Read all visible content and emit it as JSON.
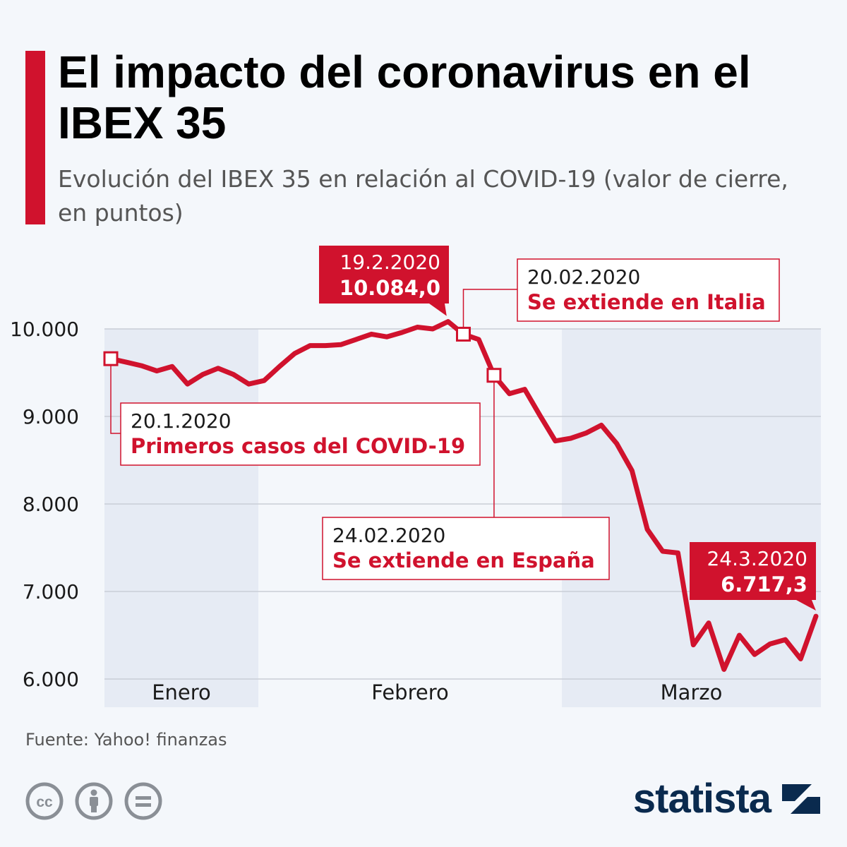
{
  "header": {
    "title": "El impacto del coronavirus en el IBEX 35",
    "subtitle": "Evolución del IBEX 35 en relación al COVID-19 (valor de cierre, en puntos)"
  },
  "footer": {
    "source": "Fuente: Yahoo! finanzas",
    "logo_text": "statista",
    "license_icons": [
      "creative-commons-icon",
      "attribution-icon",
      "no-derivatives-icon"
    ]
  },
  "colors": {
    "accent": "#d0122d",
    "background": "#f4f7fb",
    "month_band": "#e6ebf4",
    "grid": "#c9ced6",
    "logo": "#0a2a4e"
  },
  "chart_data": {
    "type": "line",
    "title": "El impacto del coronavirus en el IBEX 35",
    "ylabel": "",
    "xlabel": "",
    "ylim": [
      6000,
      10000
    ],
    "yticks": [
      6000,
      7000,
      8000,
      9000,
      10000
    ],
    "ytick_labels": [
      "6.000",
      "7.000",
      "8.000",
      "9.000",
      "10.000"
    ],
    "months": [
      "Enero",
      "Febrero",
      "Marzo"
    ],
    "shaded_months": [
      "Enero",
      "Marzo"
    ],
    "x": [
      "20.1",
      "21.1",
      "22.1",
      "23.1",
      "24.1",
      "27.1",
      "28.1",
      "29.1",
      "30.1",
      "31.1",
      "3.2",
      "4.2",
      "5.2",
      "6.2",
      "7.2",
      "10.2",
      "11.2",
      "12.2",
      "13.2",
      "14.2",
      "17.2",
      "18.2",
      "19.2",
      "20.2",
      "21.2",
      "24.2",
      "25.2",
      "26.2",
      "27.2",
      "28.2",
      "2.3",
      "3.3",
      "4.3",
      "5.3",
      "6.3",
      "9.3",
      "10.3",
      "11.3",
      "12.3",
      "13.3",
      "16.3",
      "17.3",
      "18.3",
      "19.3",
      "20.3",
      "23.3",
      "24.3"
    ],
    "series": [
      {
        "values": [
          9660,
          9620,
          9580,
          9520,
          9570,
          9370,
          9480,
          9550,
          9480,
          9370,
          9410,
          9570,
          9720,
          9810,
          9810,
          9820,
          9880,
          9940,
          9910,
          9960,
          10020,
          10000,
          10084,
          9940,
          9880,
          9470,
          9260,
          9310,
          9010,
          8720,
          8750,
          8810,
          8900,
          8690,
          8380,
          7710,
          7460,
          7440,
          6390,
          6640,
          6110,
          6500,
          6280,
          6400,
          6450,
          6230,
          6717.3
        ]
      }
    ],
    "callouts": [
      {
        "date": "19.2.2020",
        "value": "10.084,0"
      },
      {
        "date": "24.3.2020",
        "value": "6.717,3"
      }
    ],
    "annotations": [
      {
        "date": "20.1.2020",
        "text": "Primeros casos del COVID-19"
      },
      {
        "date": "20.02.2020",
        "text": "Se extiende en Italia"
      },
      {
        "date": "24.02.2020",
        "text": "Se extiende en España"
      }
    ]
  }
}
